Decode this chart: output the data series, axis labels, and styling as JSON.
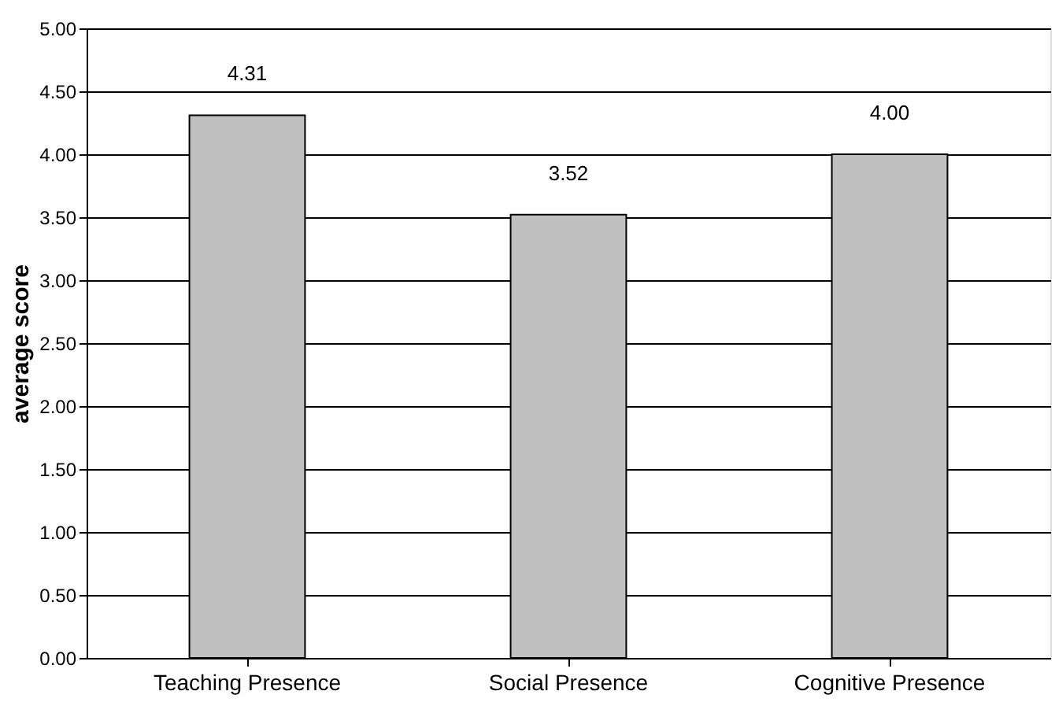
{
  "chart_data": {
    "type": "bar",
    "ylabel": "average score",
    "categories": [
      "Teaching Presence",
      "Social Presence",
      "Cognitive Presence"
    ],
    "values": [
      4.31,
      3.52,
      4.0
    ],
    "color": "#c0c0c0",
    "value_labels": [
      "4.31",
      "3.52",
      "4.00"
    ],
    "ylim": [
      0,
      5
    ],
    "yticks": [
      {
        "value": 0,
        "label": "0.00"
      },
      {
        "value": 0.5,
        "label": "0.50"
      },
      {
        "value": 1,
        "label": "1.00"
      },
      {
        "value": 1.5,
        "label": "1.50"
      },
      {
        "value": 2,
        "label": "2.00"
      },
      {
        "value": 2.5,
        "label": "2.50"
      },
      {
        "value": 3,
        "label": "3.00"
      },
      {
        "value": 3.5,
        "label": "3.50"
      },
      {
        "value": 4,
        "label": "4.00"
      },
      {
        "value": 4.5,
        "label": "4.50"
      },
      {
        "value": 5,
        "label": "5.00"
      }
    ],
    "grid": "y"
  }
}
